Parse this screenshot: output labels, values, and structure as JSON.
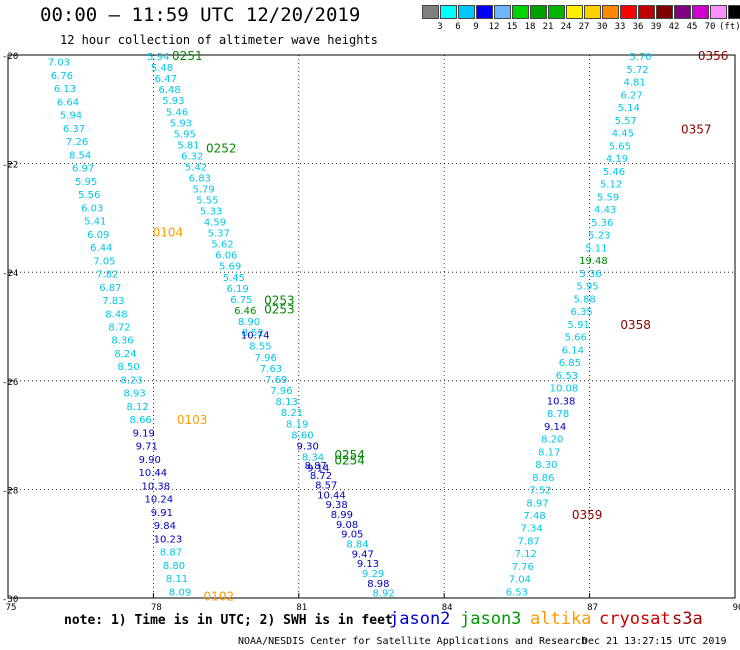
{
  "header": {
    "title": "00:00 – 11:59 UTC 12/20/2019",
    "subtitle": "12 hour collection of altimeter wave heights"
  },
  "colorbar": {
    "colors": [
      "#808080",
      "#00ffff",
      "#00c8ff",
      "#0000ff",
      "#6fb5ff",
      "#00d200",
      "#00a000",
      "#00b400",
      "#fff000",
      "#ffd000",
      "#ff8800",
      "#ff0000",
      "#c00000",
      "#800000",
      "#800080",
      "#d000d0",
      "#ff90ff",
      "#000000"
    ],
    "labels": [
      "3",
      "6",
      "9",
      "12",
      "15",
      "18",
      "21",
      "24",
      "27",
      "30",
      "33",
      "36",
      "39",
      "42",
      "45",
      "70",
      "(ft)"
    ]
  },
  "footer": {
    "note": "note: 1) Time is in UTC; 2) SWH is in feet",
    "satellites": [
      {
        "name": "jason2",
        "color": "#0000cc"
      },
      {
        "name": "jason3",
        "color": "#009900"
      },
      {
        "name": "altika",
        "color": "#ff9900"
      },
      {
        "name": "cryosat",
        "color": "#cc0000"
      },
      {
        "name": "s3a",
        "color": "#990000"
      }
    ],
    "credit": "NOAA/NESDIS Center for Satellite Applications and Research",
    "timestamp": "Dec 21 13:27:15 UTC 2019"
  },
  "chart_data": {
    "type": "scatter",
    "title": "00:00 – 11:59 UTC 12/20/2019",
    "xlim": [
      75,
      90
    ],
    "ylim": [
      -30,
      -20
    ],
    "x_ticks": [
      75,
      78,
      81,
      84,
      87,
      90
    ],
    "x_tick_labels": [
      "75",
      "78",
      "81",
      "84",
      "87",
      "90"
    ],
    "y_ticks": [
      -20,
      -22,
      -24,
      -26,
      -28,
      -30
    ],
    "y_tick_labels": [
      "-20",
      "-22",
      "-24",
      "-26",
      "-28",
      "-30"
    ],
    "grid": true,
    "colors": {
      "light": "#00c8e8",
      "dark": "#0000c0",
      "green": "#008800"
    },
    "tracks": [
      {
        "name": "track-west",
        "x_start": 76.05,
        "y_start": -20.12,
        "x_end": 78.55,
        "y_end": -29.88,
        "values": [
          "7.03",
          "6.76",
          "6.13",
          "6.64",
          "5.94",
          "6.37",
          "7.26",
          "8.54",
          "6.97",
          "5.95",
          "5.56",
          "6.03",
          "5.41",
          "6.09",
          "6.44",
          "7.05",
          "7.82",
          "6.87",
          "7.83",
          "8.48",
          "8.72",
          "8.36",
          "8.24",
          "8.50",
          "8.23",
          "8.93",
          "8.12",
          "8.66",
          "9.19",
          "9.71",
          "9.90",
          "10.44",
          "10.38",
          "10.24",
          "9.91",
          "9.84",
          "10.23",
          "8.87",
          "8.80",
          "8.11",
          "8.09"
        ],
        "colors": [
          "light",
          "light",
          "light",
          "light",
          "light",
          "light",
          "light",
          "light",
          "light",
          "light",
          "light",
          "light",
          "light",
          "light",
          "light",
          "light",
          "light",
          "light",
          "light",
          "light",
          "light",
          "light",
          "light",
          "light",
          "light",
          "light",
          "light",
          "light",
          "dark",
          "dark",
          "dark",
          "dark",
          "dark",
          "dark",
          "dark",
          "dark",
          "dark",
          "light",
          "light",
          "light",
          "light"
        ]
      },
      {
        "name": "track-middle-a",
        "x_start": 78.1,
        "y_start": -20.02,
        "x_end": 80.05,
        "y_end": -25.1,
        "values": [
          "5.94",
          "5.48",
          "6.47",
          "6.48",
          "5.93",
          "5.46",
          "5.93",
          "5.95",
          "5.81",
          "6.32",
          "5.42",
          "6.83",
          "5.79",
          "5.55",
          "5.33",
          "4.59",
          "5.37",
          "5.62",
          "6.06",
          "5.69",
          "5.45",
          "6.19",
          "6.75",
          "6.46",
          "8.90",
          "8.52"
        ],
        "colors": [
          "light",
          "light",
          "light",
          "light",
          "light",
          "light",
          "light",
          "light",
          "light",
          "light",
          "light",
          "light",
          "light",
          "light",
          "light",
          "light",
          "light",
          "light",
          "light",
          "light",
          "light",
          "light",
          "light",
          "green",
          "light",
          "light"
        ]
      },
      {
        "name": "track-middle-b",
        "x_start": 80.1,
        "y_start": -25.15,
        "x_end": 81.4,
        "y_end": -27.6,
        "values": [
          "10.74",
          "8.55",
          "7.96",
          "7.63",
          "7.69",
          "7.96",
          "8.13",
          "8.21",
          "8.19",
          "8.60",
          "9.30",
          "8.34",
          "9.14"
        ],
        "colors": [
          "dark",
          "light",
          "light",
          "light",
          "light",
          "light",
          "light",
          "light",
          "light",
          "light",
          "dark",
          "light",
          "dark"
        ]
      },
      {
        "name": "track-middle-c",
        "x_start": 81.35,
        "y_start": -27.55,
        "x_end": 82.75,
        "y_end": -29.9,
        "values": [
          "8.87",
          "8.72",
          "8.57",
          "10.44",
          "9.38",
          "8.99",
          "9.08",
          "9.05",
          "8.84",
          "9.47",
          "9.13",
          "9.29",
          "8.98",
          "8.92"
        ],
        "colors": [
          "dark",
          "dark",
          "dark",
          "dark",
          "dark",
          "dark",
          "dark",
          "dark",
          "light",
          "dark",
          "dark",
          "light",
          "dark",
          "light"
        ]
      },
      {
        "name": "track-east",
        "x_start": 88.05,
        "y_start": -20.02,
        "x_end": 85.5,
        "y_end": -29.88,
        "values": [
          "5.70",
          "5.72",
          "4.81",
          "6.27",
          "5.14",
          "5.57",
          "4.45",
          "5.65",
          "4.19",
          "5.46",
          "5.12",
          "5.59",
          "4.43",
          "5.36",
          "5.23",
          "5.11",
          "19.48",
          "5.36",
          "5.95",
          "5.88",
          "6.35",
          "5.91",
          "5.66",
          "6.14",
          "6.85",
          "6.53",
          "10.08",
          "10.38",
          "8.78",
          "9.14",
          "8.20",
          "8.17",
          "8.30",
          "8.86",
          "7.52",
          "8.97",
          "7.48",
          "7.34",
          "7.87",
          "7.12",
          "7.76",
          "7.04",
          "6.53"
        ],
        "colors": [
          "light",
          "light",
          "light",
          "light",
          "light",
          "light",
          "light",
          "light",
          "light",
          "light",
          "light",
          "light",
          "light",
          "light",
          "light",
          "light",
          "green",
          "light",
          "light",
          "light",
          "light",
          "light",
          "light",
          "light",
          "light",
          "light",
          "light",
          "dark",
          "light",
          "dark",
          "light",
          "light",
          "light",
          "light",
          "light",
          "light",
          "light",
          "light",
          "light",
          "light",
          "light",
          "light",
          "light"
        ]
      }
    ],
    "pass_labels": [
      {
        "text": "0251",
        "x": 78.7,
        "y": -20.0,
        "color": "#008800"
      },
      {
        "text": "0252",
        "x": 79.4,
        "y": -21.7,
        "color": "#008800"
      },
      {
        "text": "0253",
        "x": 80.6,
        "y": -24.5,
        "color": "#008800"
      },
      {
        "text": "0253",
        "x": 80.6,
        "y": -24.67,
        "color": "#008800"
      },
      {
        "text": "0254",
        "x": 82.05,
        "y": -27.35,
        "color": "#008800"
      },
      {
        "text": "0254",
        "x": 82.05,
        "y": -27.45,
        "color": "#008800"
      },
      {
        "text": "0104",
        "x": 78.3,
        "y": -23.25,
        "color": "#ff9900"
      },
      {
        "text": "0103",
        "x": 78.8,
        "y": -26.7,
        "color": "#ff9900"
      },
      {
        "text": "0102",
        "x": 79.35,
        "y": -29.95,
        "color": "#ff9900"
      },
      {
        "text": "0356",
        "x": 89.55,
        "y": -20.0,
        "color": "#880000"
      },
      {
        "text": "0357",
        "x": 89.2,
        "y": -21.35,
        "color": "#880000"
      },
      {
        "text": "0358",
        "x": 87.95,
        "y": -24.95,
        "color": "#880000"
      },
      {
        "text": "0359",
        "x": 86.95,
        "y": -28.45,
        "color": "#880000"
      }
    ]
  }
}
